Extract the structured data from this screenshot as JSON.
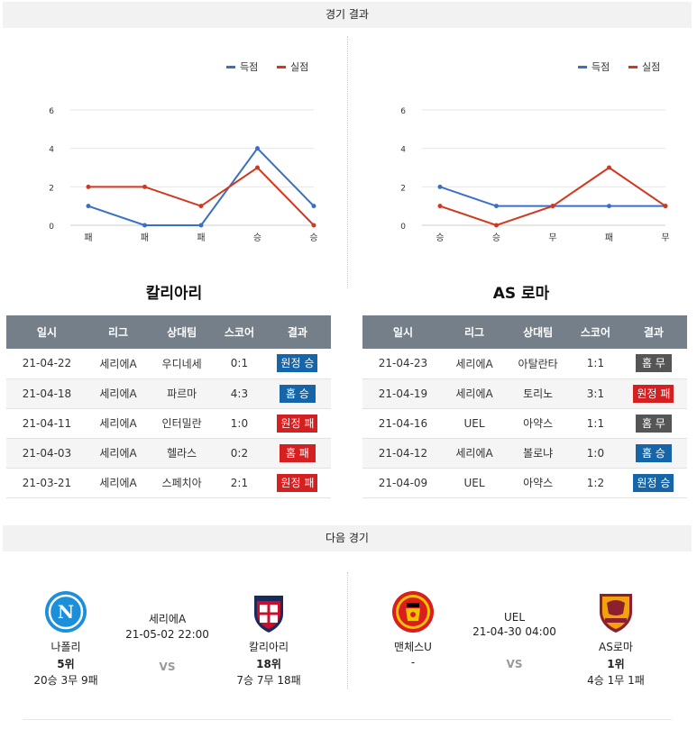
{
  "sections": {
    "results_title": "경기 결과",
    "next_title": "다음 경기"
  },
  "colors": {
    "scored": "#1f5c99",
    "conceded": "#d2381f",
    "win_badge": "#1565a8",
    "loss_badge": "#d42020",
    "draw_badge": "#555555"
  },
  "chart_data": [
    {
      "type": "line",
      "categories": [
        "패",
        "패",
        "패",
        "승",
        "승"
      ],
      "series": [
        {
          "name": "득점",
          "values": [
            1,
            0,
            0,
            4,
            1
          ],
          "color": "#3a6fc4"
        },
        {
          "name": "실점",
          "values": [
            2,
            2,
            1,
            3,
            0
          ],
          "color": "#d2381f"
        }
      ],
      "ylim": [
        0,
        6
      ],
      "yticks": [
        "0",
        "2",
        "4",
        "6"
      ],
      "legend": "top-right",
      "grid": true
    },
    {
      "type": "line",
      "categories": [
        "승",
        "승",
        "무",
        "패",
        "무"
      ],
      "series": [
        {
          "name": "득점",
          "values": [
            2,
            1,
            1,
            1,
            1
          ],
          "color": "#3a6fc4"
        },
        {
          "name": "실점",
          "values": [
            1,
            0,
            1,
            3,
            1
          ],
          "color": "#d2381f"
        }
      ],
      "ylim": [
        0,
        6
      ],
      "yticks": [
        "0",
        "2",
        "4",
        "6"
      ],
      "legend": "top-right",
      "grid": true
    }
  ],
  "teams": {
    "left": {
      "name": "칼리아리",
      "headers": [
        "일시",
        "리그",
        "상대팀",
        "스코어",
        "결과"
      ],
      "rows": [
        {
          "date": "21-04-22",
          "league": "세리에A",
          "opponent": "우디네세",
          "score": "0:1",
          "result": "원정 승",
          "color": "blue"
        },
        {
          "date": "21-04-18",
          "league": "세리에A",
          "opponent": "파르마",
          "score": "4:3",
          "result": "홈 승",
          "color": "blue"
        },
        {
          "date": "21-04-11",
          "league": "세리에A",
          "opponent": "인터밀란",
          "score": "1:0",
          "result": "원정 패",
          "color": "red"
        },
        {
          "date": "21-04-03",
          "league": "세리에A",
          "opponent": "헬라스",
          "score": "0:2",
          "result": "홈 패",
          "color": "red"
        },
        {
          "date": "21-03-21",
          "league": "세리에A",
          "opponent": "스페치아",
          "score": "2:1",
          "result": "원정 패",
          "color": "red"
        }
      ]
    },
    "right": {
      "name": "AS 로마",
      "headers": [
        "일시",
        "리그",
        "상대팀",
        "스코어",
        "결과"
      ],
      "rows": [
        {
          "date": "21-04-23",
          "league": "세리에A",
          "opponent": "아탈란타",
          "score": "1:1",
          "result": "홈 무",
          "color": "gray"
        },
        {
          "date": "21-04-19",
          "league": "세리에A",
          "opponent": "토리노",
          "score": "3:1",
          "result": "원정 패",
          "color": "red"
        },
        {
          "date": "21-04-16",
          "league": "UEL",
          "opponent": "아약스",
          "score": "1:1",
          "result": "홈 무",
          "color": "gray"
        },
        {
          "date": "21-04-12",
          "league": "세리에A",
          "opponent": "볼로냐",
          "score": "1:0",
          "result": "홈 승",
          "color": "blue"
        },
        {
          "date": "21-04-09",
          "league": "UEL",
          "opponent": "아약스",
          "score": "1:2",
          "result": "원정 승",
          "color": "blue"
        }
      ]
    }
  },
  "next_matches": [
    {
      "league": "세리에A",
      "time": "21-05-02 22:00",
      "vs": "VS",
      "home": {
        "name": "나폴리",
        "rank": "5위",
        "record": "20승 3무 9패",
        "logo_icon": "napoli-crest-icon"
      },
      "away": {
        "name": "칼리아리",
        "rank": "18위",
        "record": "7승 7무 18패",
        "logo_icon": "cagliari-crest-icon"
      }
    },
    {
      "league": "UEL",
      "time": "21-04-30 04:00",
      "vs": "VS",
      "home": {
        "name": "맨체스U",
        "rank": "-",
        "record": "",
        "logo_icon": "manutd-crest-icon"
      },
      "away": {
        "name": "AS로마",
        "rank": "1위",
        "record": "4승 1무 1패",
        "logo_icon": "roma-crest-icon"
      }
    }
  ]
}
